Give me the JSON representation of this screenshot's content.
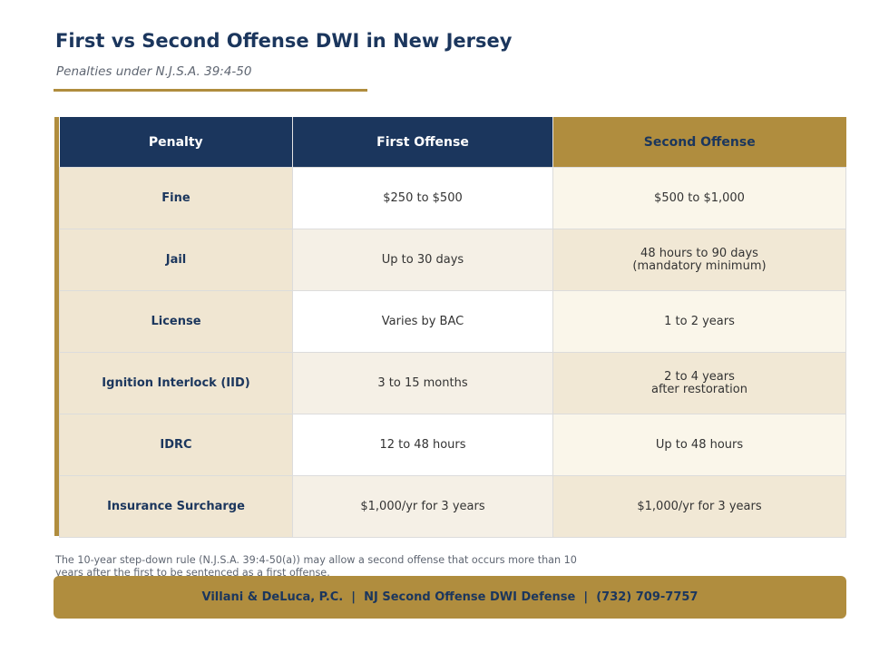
{
  "header": {
    "title": "First vs Second Offense DWI in New Jersey",
    "subtitle": "Penalties under N.J.S.A. 39:4-50"
  },
  "table": {
    "columns": [
      "Penalty",
      "First Offense",
      "Second Offense"
    ],
    "rows": [
      {
        "penalty": "Fine",
        "first": "$250 to $500",
        "second": "$500 to $1,000"
      },
      {
        "penalty": "Jail",
        "first": "Up to 30 days",
        "second": "48 hours to 90 days\n(mandatory minimum)"
      },
      {
        "penalty": "License",
        "first": "Varies by BAC",
        "second": "1 to 2 years"
      },
      {
        "penalty": "Ignition Interlock (IID)",
        "first": "3 to 15 months",
        "second": "2 to 4 years\nafter restoration"
      },
      {
        "penalty": "IDRC",
        "first": "12 to 48 hours",
        "second": "Up to 48 hours"
      },
      {
        "penalty": "Insurance Surcharge",
        "first": "$1,000/yr for 3 years",
        "second": "$1,000/yr for 3 years"
      }
    ]
  },
  "footnote": "The 10-year step-down rule (N.J.S.A. 39:4-50(a)) may allow a second offense that occurs more than 10 years after the first to be sentenced as a first offense.",
  "footer": {
    "text": "Villani & DeLuca, P.C.  |  NJ Second Offense DWI Defense  |  (732) 709-7757"
  },
  "colors": {
    "navy": "#1b365d",
    "gold": "#b08d3e",
    "label_bg": "#f0e6d2"
  }
}
